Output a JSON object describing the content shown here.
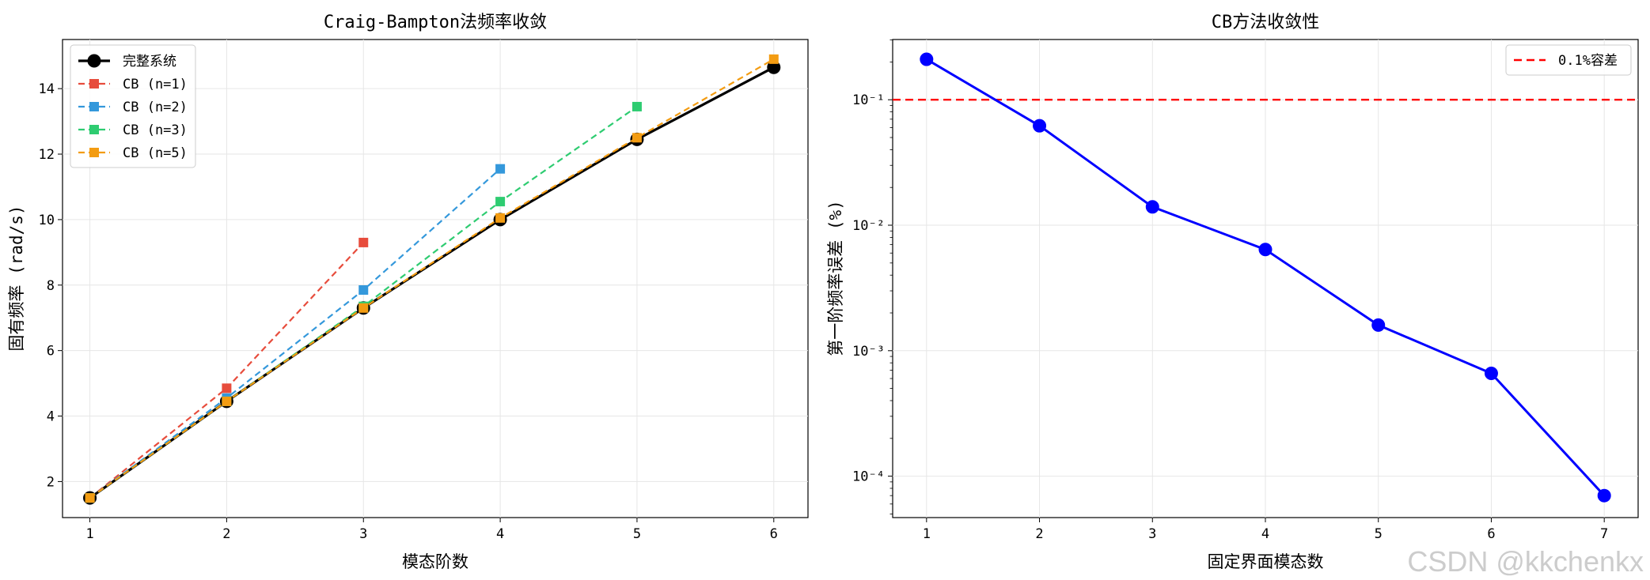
{
  "watermark": "CSDN @kkchenkx",
  "chart_data": [
    {
      "type": "line",
      "title": "Craig-Bampton法频率收敛",
      "xlabel": "模态阶数",
      "ylabel": "固有频率 (rad/s)",
      "xlim": [
        0.8,
        6.25
      ],
      "ylim": [
        0.9,
        15.5
      ],
      "x_ticks": [
        1,
        2,
        3,
        4,
        5,
        6
      ],
      "y_ticks": [
        2,
        4,
        6,
        8,
        10,
        12,
        14
      ],
      "grid": true,
      "legend_position": "top-left",
      "series": [
        {
          "name": "完整系统",
          "color": "#000000",
          "style": "solid",
          "marker": "circle",
          "x": [
            1,
            2,
            3,
            4,
            5,
            6
          ],
          "values": [
            1.5,
            4.45,
            7.3,
            10.0,
            12.45,
            14.65
          ]
        },
        {
          "name": "CB (n=1)",
          "color": "#e74c3c",
          "style": "dashed",
          "marker": "square",
          "x": [
            1,
            2,
            3
          ],
          "values": [
            1.5,
            4.85,
            9.3
          ]
        },
        {
          "name": "CB (n=2)",
          "color": "#3498db",
          "style": "dashed",
          "marker": "square",
          "x": [
            1,
            2,
            3,
            4
          ],
          "values": [
            1.5,
            4.55,
            7.85,
            11.55
          ]
        },
        {
          "name": "CB (n=3)",
          "color": "#2ecc71",
          "style": "dashed",
          "marker": "square",
          "x": [
            1,
            2,
            3,
            4,
            5
          ],
          "values": [
            1.5,
            4.45,
            7.35,
            10.55,
            13.45
          ]
        },
        {
          "name": "CB (n=5)",
          "color": "#f39c12",
          "style": "dashed",
          "marker": "square",
          "x": [
            1,
            2,
            3,
            4,
            5,
            6
          ],
          "values": [
            1.5,
            4.45,
            7.3,
            10.05,
            12.5,
            14.9
          ]
        }
      ]
    },
    {
      "type": "line",
      "title": "CB方法收敛性",
      "xlabel": "固定界面模态数",
      "ylabel": "第一阶频率误差 (%)",
      "y_scale": "log",
      "xlim": [
        0.7,
        7.3
      ],
      "ylim_log10": [
        -4.33,
        -0.52
      ],
      "x_ticks": [
        1,
        2,
        3,
        4,
        5,
        6,
        7
      ],
      "y_ticks": [
        {
          "exp": -1,
          "label": "10⁻¹"
        },
        {
          "exp": -2,
          "label": "10⁻²"
        },
        {
          "exp": -3,
          "label": "10⁻³"
        },
        {
          "exp": -4,
          "label": "10⁻⁴"
        }
      ],
      "grid": true,
      "legend_position": "top-right",
      "reference_line": {
        "name": "0.1%容差",
        "value": 0.1,
        "color": "#ff0000",
        "style": "dashed"
      },
      "series": [
        {
          "color": "#0000ff",
          "style": "solid",
          "marker": "circle",
          "x": [
            1,
            2,
            3,
            4,
            5,
            6,
            7
          ],
          "values": [
            0.21,
            0.062,
            0.014,
            0.0064,
            0.0016,
            0.00066,
            7e-05
          ]
        }
      ]
    }
  ]
}
